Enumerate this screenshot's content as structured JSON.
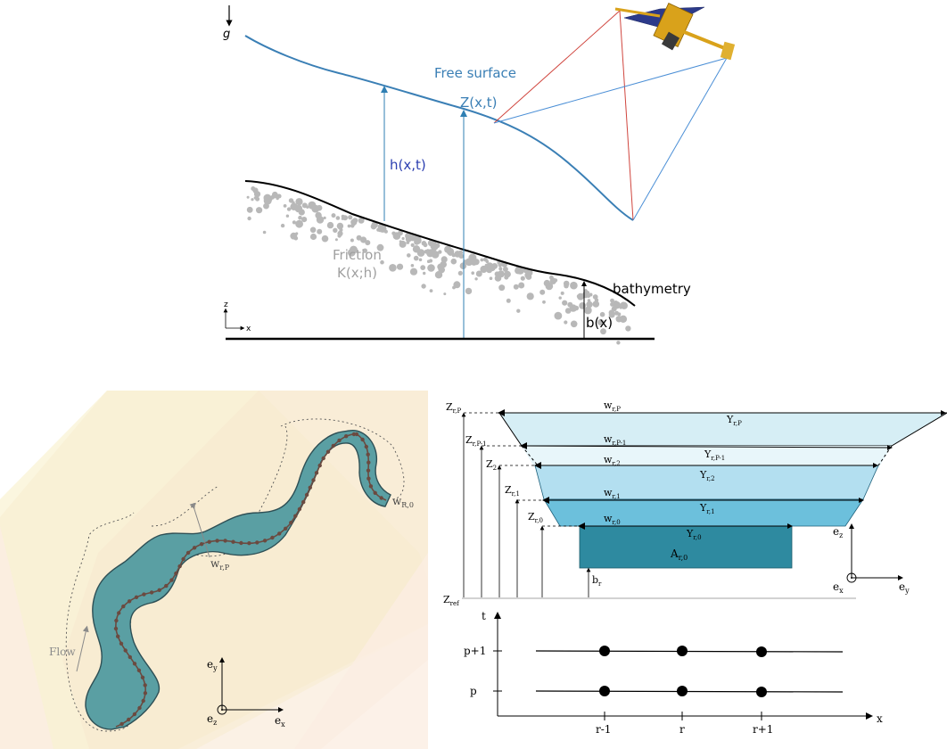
{
  "top_panel": {
    "gravity_label": "g",
    "free_surface_label": "Free surface",
    "z_label": "Z(x,t)",
    "h_label": "h(x,t)",
    "friction_label": "Friction",
    "friction_coef_label": "K(x;h)",
    "bathymetry_label": "bathymetry",
    "b_label": "b(x)",
    "axis_z": "z",
    "axis_x": "x",
    "colors": {
      "surface": "#3a7fb5",
      "arrow": "#2f7fb3",
      "h_text": "#2c3fb0",
      "friction": "#b0b0b0",
      "bed": "#000000",
      "swath_red": "#d0463f",
      "swath_blue": "#4b8fd6"
    }
  },
  "river_map": {
    "flow_label": "Flow",
    "w_R0": "w",
    "w_R0_sub": "R,0",
    "w_rP": "w",
    "w_rP_sub": "r,P",
    "ey": "e",
    "ey_sub": "y",
    "ex": "e",
    "ex_sub": "x",
    "ez": "e",
    "ez_sub": "z",
    "colors": {
      "river": "#5a9fa3",
      "river_edge": "#2e4f55",
      "centerline": "#7a4a3a",
      "swath_left": "#fbf5dc",
      "swath_right": "#fbeadc"
    }
  },
  "cross_section": {
    "levels": [
      {
        "Z": "Z",
        "Z_sub": "r,P",
        "w": "w",
        "w_sub": "r,P",
        "Y": "Y",
        "Y_sub": "r,P"
      },
      {
        "Z": "Z",
        "Z_sub": "r,P-1",
        "w": "w",
        "w_sub": "r,P-1",
        "Y": "Y",
        "Y_sub": "r,P-1"
      },
      {
        "Z": "Z",
        "Z_sub": "2",
        "w": "w",
        "w_sub": "r,2",
        "Y": "Y",
        "Y_sub": "r,2"
      },
      {
        "Z": "Z",
        "Z_sub": "r,1",
        "w": "w",
        "w_sub": "r,1",
        "Y": "Y",
        "Y_sub": "r,1"
      },
      {
        "Z": "Z",
        "Z_sub": "r,0",
        "w": "w",
        "w_sub": "r,0",
        "Y": "Y",
        "Y_sub": "r,0"
      }
    ],
    "A_label": "A",
    "A_sub": "r,0",
    "b_label": "b",
    "b_sub": "r",
    "zref_label": "Z",
    "zref_sub": "ref",
    "ez": "e",
    "ez_sub": "z",
    "ex": "e",
    "ex_sub": "x",
    "ey": "e",
    "ey_sub": "y",
    "colors": {
      "top": "#d6eef5",
      "mid": "#b3dff0",
      "low": "#8fd0e6",
      "low2": "#5fb7d2",
      "rect": "#2e8aa0"
    }
  },
  "grid": {
    "t_label": "t",
    "x_label": "x",
    "p1_label": "p+1",
    "p_label": "p",
    "r_labels": [
      "r-1",
      "r",
      "r+1"
    ]
  }
}
